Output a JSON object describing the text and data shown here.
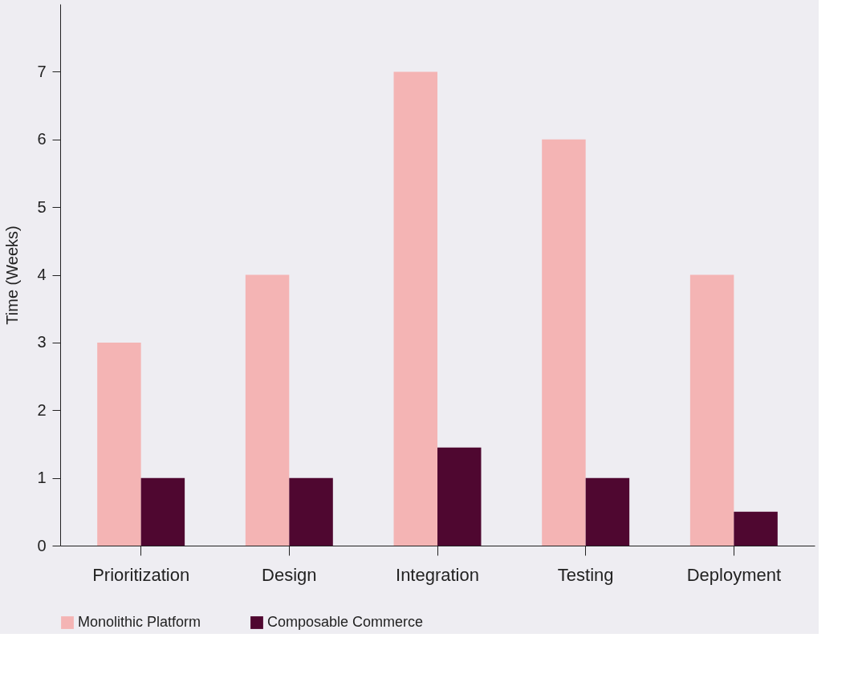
{
  "chart_data": {
    "type": "bar",
    "ylabel": "Time (Weeks)",
    "categories": [
      "Prioritization",
      "Design",
      "Integration",
      "Testing",
      "Deployment"
    ],
    "series": [
      {
        "name": "Monolithic Platform",
        "color": "#f4b4b4",
        "values": [
          3,
          4,
          7,
          6,
          4
        ]
      },
      {
        "name": "Composable Commerce",
        "color": "#4f0730",
        "values": [
          1,
          1,
          1.45,
          1,
          0.5
        ]
      }
    ],
    "ylim": [
      0,
      8
    ],
    "yticks": [
      0,
      1,
      2,
      3,
      4,
      5,
      6,
      7
    ],
    "grid": false,
    "legend": "bottom"
  }
}
